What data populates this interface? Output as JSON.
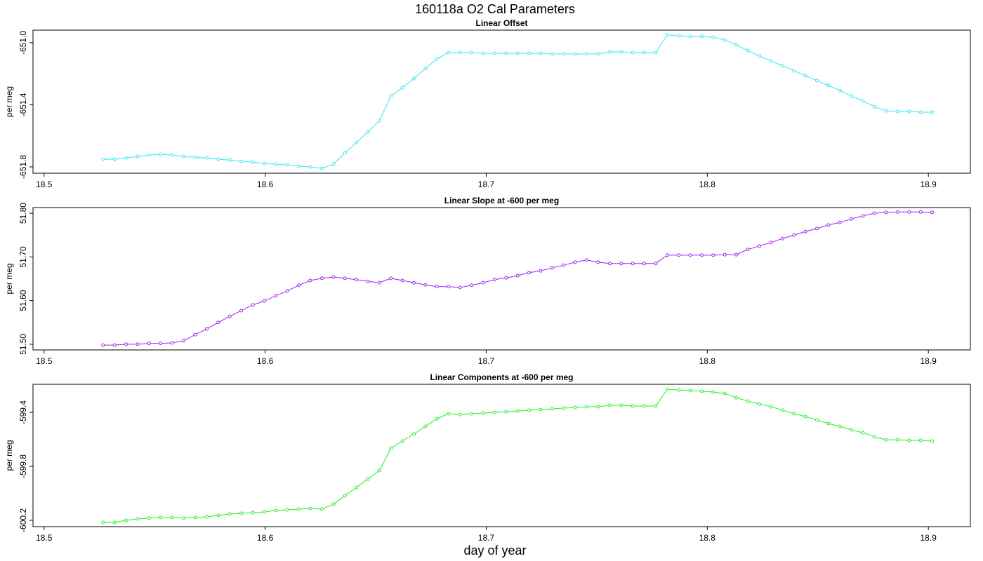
{
  "title": "160118a   O2 Cal Parameters",
  "xlabel": "day of year",
  "chart_data": [
    {
      "type": "line",
      "title": "Linear Offset",
      "ylabel": "per meg",
      "xlim": [
        18.495,
        18.919
      ],
      "xticks": [
        18.5,
        18.6,
        18.7,
        18.8,
        18.9
      ],
      "ylim": [
        -651.841,
        -650.919
      ],
      "yticks": [
        {
          "value": -651.0,
          "label": "-651.0"
        },
        -651.4,
        -651.8
      ],
      "x": [
        18.5267,
        18.5319,
        18.5371,
        18.5423,
        18.5475,
        18.5527,
        18.5579,
        18.5631,
        18.5684,
        18.5736,
        18.5788,
        18.584,
        18.5892,
        18.5944,
        18.5996,
        18.6048,
        18.61,
        18.6152,
        18.6204,
        18.6257,
        18.6309,
        18.6361,
        18.6413,
        18.6465,
        18.6517,
        18.6569,
        18.6621,
        18.6673,
        18.6725,
        18.6777,
        18.6829,
        18.6881,
        18.6934,
        18.6986,
        18.7038,
        18.709,
        18.7142,
        18.7194,
        18.7246,
        18.7298,
        18.735,
        18.7402,
        18.7454,
        18.7506,
        18.7559,
        18.7611,
        18.7663,
        18.7715,
        18.7767,
        18.7819,
        18.7871,
        18.7923,
        18.7975,
        18.8027,
        18.8079,
        18.8131,
        18.8183,
        18.8236,
        18.8288,
        18.834,
        18.8392,
        18.8444,
        18.8496,
        18.8548,
        18.86,
        18.8652,
        18.8704,
        18.8756,
        18.8808,
        18.8861,
        18.8913,
        18.8965,
        18.9017
      ],
      "series": [
        {
          "color": "#33e6f0",
          "values": [
            -651.751,
            -651.751,
            -651.742,
            -651.733,
            -651.724,
            -651.719,
            -651.724,
            -651.733,
            -651.738,
            -651.742,
            -651.751,
            -651.756,
            -651.765,
            -651.769,
            -651.778,
            -651.783,
            -651.787,
            -651.796,
            -651.801,
            -651.81,
            -651.783,
            -651.71,
            -651.643,
            -651.575,
            -651.502,
            -651.344,
            -651.29,
            -651.231,
            -651.167,
            -651.104,
            -651.063,
            -651.063,
            -651.063,
            -651.068,
            -651.068,
            -651.068,
            -651.068,
            -651.068,
            -651.068,
            -651.072,
            -651.072,
            -651.072,
            -651.072,
            -651.072,
            -651.059,
            -651.059,
            -651.063,
            -651.063,
            -651.063,
            -650.95,
            -650.955,
            -650.959,
            -650.959,
            -650.964,
            -650.982,
            -651.014,
            -651.05,
            -651.086,
            -651.118,
            -651.149,
            -651.181,
            -651.213,
            -651.244,
            -651.276,
            -651.308,
            -651.344,
            -651.376,
            -651.412,
            -651.439,
            -651.443,
            -651.443,
            -651.448,
            -651.448
          ]
        }
      ]
    },
    {
      "type": "line",
      "title": "Linear Slope at -600 per meg",
      "ylabel": "per meg",
      "xlim": [
        18.495,
        18.919
      ],
      "xticks": [
        18.5,
        18.6,
        18.7,
        18.8,
        18.9
      ],
      "ylim": [
        51.487,
        51.813
      ],
      "yticks": [
        {
          "value": 51.5,
          "label": "51.50"
        },
        {
          "value": 51.6,
          "label": "51.60"
        },
        {
          "value": 51.7,
          "label": "51.70"
        },
        {
          "value": 51.8,
          "label": "51.80"
        }
      ],
      "x": [
        18.5267,
        18.5319,
        18.5371,
        18.5423,
        18.5475,
        18.5527,
        18.5579,
        18.5631,
        18.5684,
        18.5736,
        18.5788,
        18.584,
        18.5892,
        18.5944,
        18.5996,
        18.6048,
        18.61,
        18.6152,
        18.6204,
        18.6257,
        18.6309,
        18.6361,
        18.6413,
        18.6465,
        18.6517,
        18.6569,
        18.6621,
        18.6673,
        18.6725,
        18.6777,
        18.6829,
        18.6881,
        18.6934,
        18.6986,
        18.7038,
        18.709,
        18.7142,
        18.7194,
        18.7246,
        18.7298,
        18.735,
        18.7402,
        18.7454,
        18.7506,
        18.7559,
        18.7611,
        18.7663,
        18.7715,
        18.7767,
        18.7819,
        18.7871,
        18.7923,
        18.7975,
        18.8027,
        18.8079,
        18.8131,
        18.8183,
        18.8236,
        18.8288,
        18.834,
        18.8392,
        18.8444,
        18.8496,
        18.8548,
        18.86,
        18.8652,
        18.8704,
        18.8756,
        18.8808,
        18.8861,
        18.8913,
        18.8965,
        18.9017
      ],
      "series": [
        {
          "color": "#a020f0",
          "values": [
            51.498,
            51.498,
            51.5,
            51.5,
            51.502,
            51.502,
            51.503,
            51.508,
            51.522,
            51.535,
            51.55,
            51.564,
            51.577,
            51.59,
            51.599,
            51.611,
            51.622,
            51.635,
            51.646,
            51.651,
            51.654,
            51.651,
            51.648,
            51.644,
            51.641,
            51.651,
            51.646,
            51.641,
            51.636,
            51.632,
            51.632,
            51.63,
            51.635,
            51.641,
            51.648,
            51.652,
            51.657,
            51.664,
            51.668,
            51.675,
            51.681,
            51.688,
            51.693,
            51.688,
            51.685,
            51.685,
            51.685,
            51.685,
            51.685,
            51.704,
            51.704,
            51.704,
            51.704,
            51.704,
            51.705,
            51.705,
            51.717,
            51.725,
            51.733,
            51.742,
            51.75,
            51.758,
            51.765,
            51.773,
            51.779,
            51.787,
            51.794,
            51.8,
            51.802,
            51.803,
            51.803,
            51.803,
            51.802
          ]
        }
      ]
    },
    {
      "type": "line",
      "title": "Linear Components at -600 per meg",
      "ylabel": "per meg",
      "xlim": [
        18.495,
        18.919
      ],
      "xticks": [
        18.5,
        18.6,
        18.7,
        18.8,
        18.9
      ],
      "ylim": [
        -600.247,
        -599.192
      ],
      "yticks": [
        -599.4,
        -599.8,
        -600.2
      ],
      "x": [
        18.5267,
        18.5319,
        18.5371,
        18.5423,
        18.5475,
        18.5527,
        18.5579,
        18.5631,
        18.5684,
        18.5736,
        18.5788,
        18.584,
        18.5892,
        18.5944,
        18.5996,
        18.6048,
        18.61,
        18.6152,
        18.6204,
        18.6257,
        18.6309,
        18.6361,
        18.6413,
        18.6465,
        18.6517,
        18.6569,
        18.6621,
        18.6673,
        18.6725,
        18.6777,
        18.6829,
        18.6881,
        18.6934,
        18.6986,
        18.7038,
        18.709,
        18.7142,
        18.7194,
        18.7246,
        18.7298,
        18.735,
        18.7402,
        18.7454,
        18.7506,
        18.7559,
        18.7611,
        18.7663,
        18.7715,
        18.7767,
        18.7819,
        18.7871,
        18.7923,
        18.7975,
        18.8027,
        18.8079,
        18.8131,
        18.8183,
        18.8236,
        18.8288,
        18.834,
        18.8392,
        18.8444,
        18.8496,
        18.8548,
        18.86,
        18.8652,
        18.8704,
        18.8756,
        18.8808,
        18.8861,
        18.8913,
        18.8965,
        18.9017
      ],
      "series": [
        {
          "color": "#22ee22",
          "values": [
            -600.216,
            -600.216,
            -600.2,
            -600.19,
            -600.184,
            -600.179,
            -600.179,
            -600.184,
            -600.179,
            -600.174,
            -600.164,
            -600.153,
            -600.148,
            -600.143,
            -600.138,
            -600.127,
            -600.122,
            -600.117,
            -600.112,
            -600.117,
            -600.081,
            -600.018,
            -599.956,
            -599.894,
            -599.831,
            -599.665,
            -599.613,
            -599.561,
            -599.504,
            -599.447,
            -599.41,
            -599.416,
            -599.41,
            -599.405,
            -599.4,
            -599.395,
            -599.39,
            -599.384,
            -599.379,
            -599.374,
            -599.369,
            -599.364,
            -599.358,
            -599.358,
            -599.348,
            -599.348,
            -599.353,
            -599.353,
            -599.353,
            -599.229,
            -599.234,
            -599.239,
            -599.244,
            -599.249,
            -599.26,
            -599.291,
            -599.317,
            -599.338,
            -599.358,
            -599.384,
            -599.41,
            -599.431,
            -599.457,
            -599.483,
            -599.504,
            -599.53,
            -599.551,
            -599.582,
            -599.603,
            -599.603,
            -599.608,
            -599.608,
            -599.613
          ]
        }
      ]
    }
  ]
}
